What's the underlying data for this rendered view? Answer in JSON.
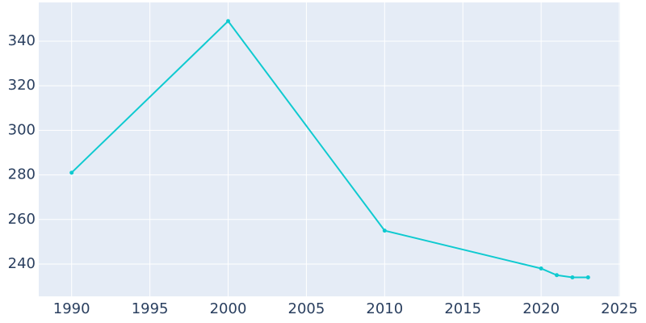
{
  "chart_data": {
    "type": "line",
    "x": [
      1990,
      2000,
      2010,
      2020,
      2021,
      2022,
      2023
    ],
    "series": [
      {
        "color": "#0fcad0",
        "values": [
          281,
          349,
          255,
          238,
          235,
          234,
          234
        ]
      }
    ],
    "xlim": [
      1987.9,
      2025.05
    ],
    "xticks": [
      1990,
      1995,
      2000,
      2005,
      2010,
      2015,
      2020,
      2025
    ],
    "ylim": [
      225.5,
      357.4
    ],
    "yticks": [
      240,
      260,
      280,
      300,
      320,
      340
    ],
    "grid": true
  }
}
